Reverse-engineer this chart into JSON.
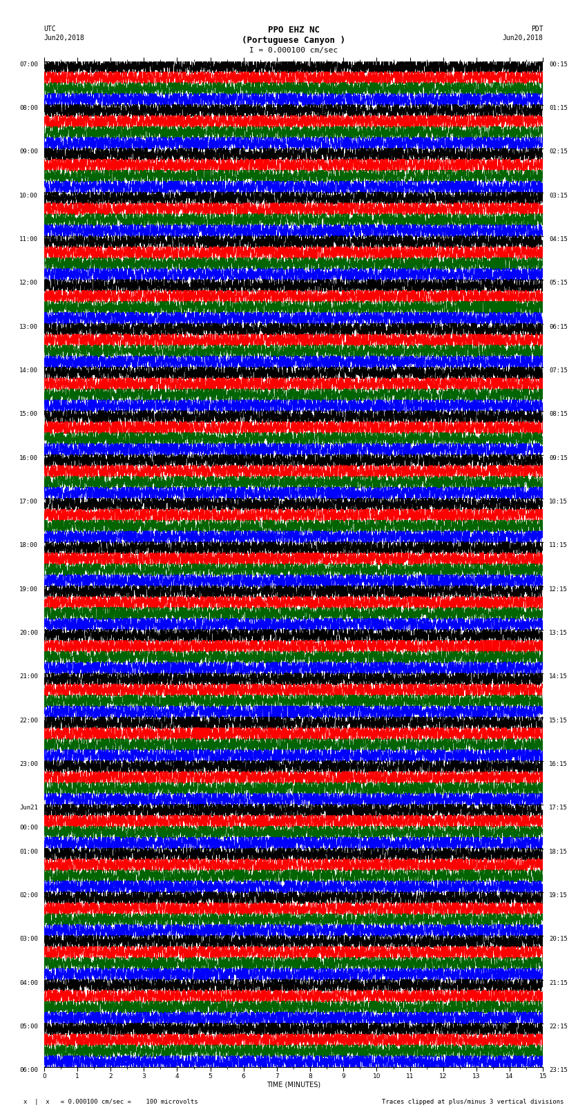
{
  "title_line1": "PPO EHZ NC",
  "title_line2": "(Portuguese Canyon )",
  "title_line3": "I = 0.000100 cm/sec",
  "utc_label": "UTC",
  "utc_date": "Jun20,2018",
  "pdt_label": "PDT",
  "pdt_date": "Jun20,2018",
  "footer_left": "x   = 0.000100 cm/sec =    100 microvolts",
  "footer_right": "Traces clipped at plus/minus 3 vertical divisions",
  "xlabel": "TIME (MINUTES)",
  "n_rows": 23,
  "traces_per_row": 4,
  "minutes_per_row": 15,
  "colors": [
    "black",
    "red",
    "#006400",
    "blue"
  ],
  "background_color": "white",
  "utc_times": [
    "07:00",
    "08:00",
    "09:00",
    "10:00",
    "11:00",
    "12:00",
    "13:00",
    "14:00",
    "15:00",
    "16:00",
    "17:00",
    "18:00",
    "19:00",
    "20:00",
    "21:00",
    "22:00",
    "23:00",
    "Jun21\n00:00",
    "01:00",
    "02:00",
    "03:00",
    "04:00",
    "05:00",
    "06:00"
  ],
  "pdt_times": [
    "00:15",
    "01:15",
    "02:15",
    "03:15",
    "04:15",
    "05:15",
    "06:15",
    "07:15",
    "08:15",
    "09:15",
    "10:15",
    "11:15",
    "12:15",
    "13:15",
    "14:15",
    "15:15",
    "16:15",
    "17:15",
    "18:15",
    "19:15",
    "20:15",
    "21:15",
    "22:15",
    "23:15"
  ],
  "title_fontsize": 9,
  "label_fontsize": 7,
  "tick_fontsize": 6.5,
  "footer_fontsize": 6.5
}
